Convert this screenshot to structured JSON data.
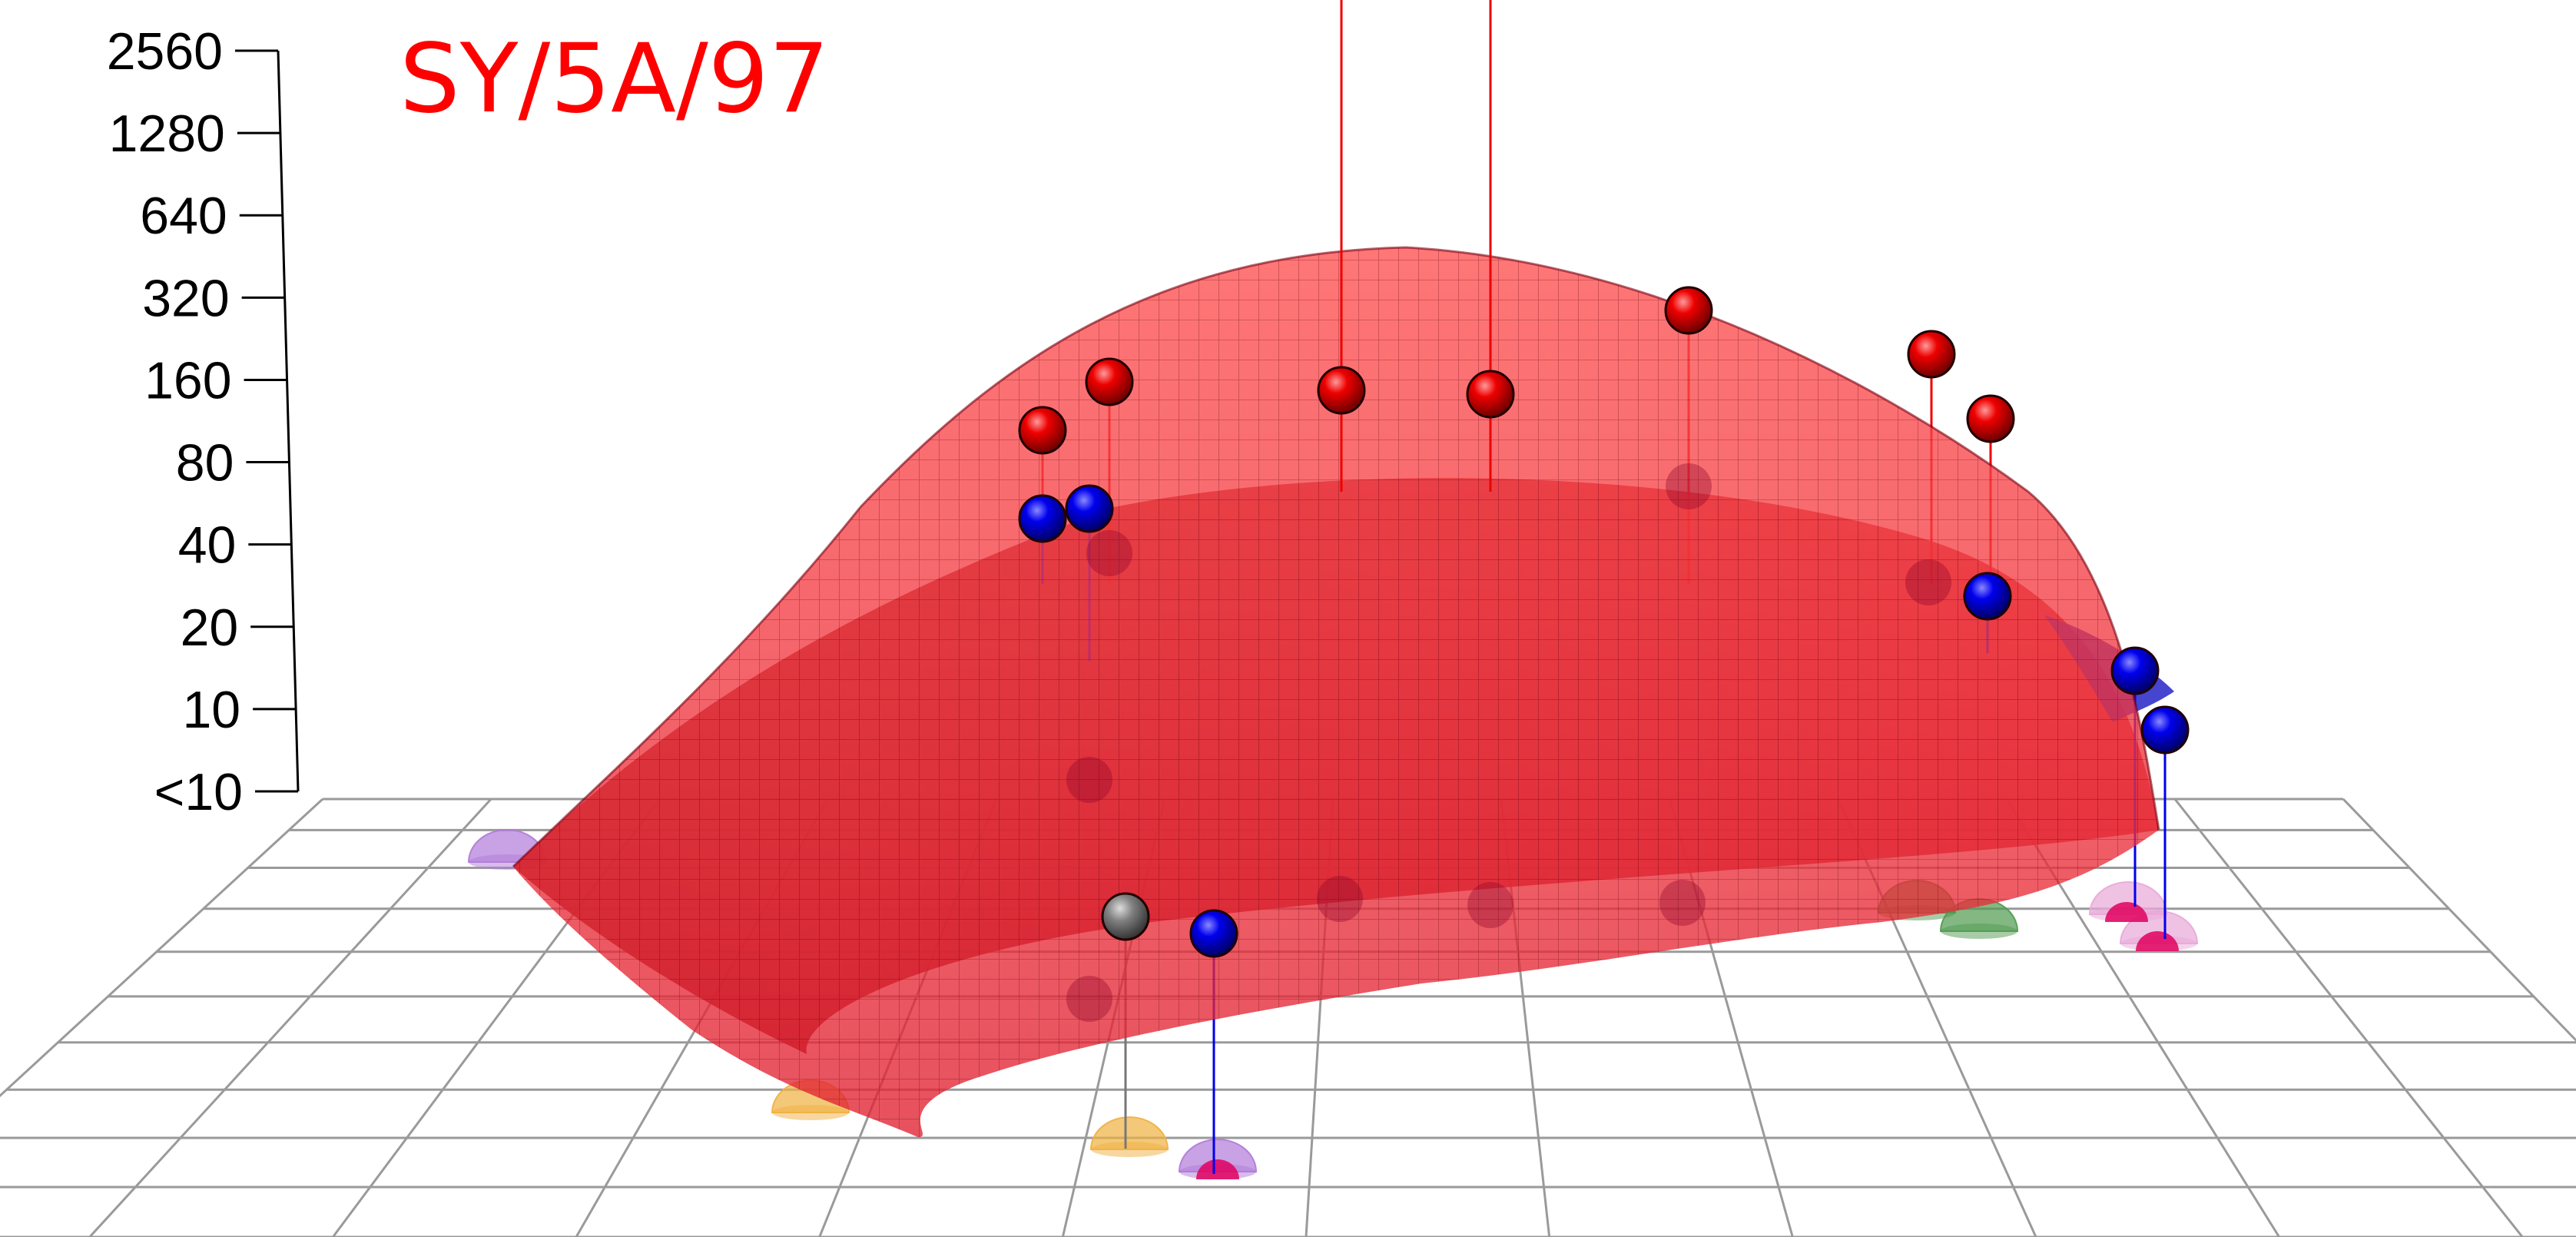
{
  "chart_data": {
    "type": "scatter",
    "title": "SY/5A/97",
    "title_color": "#ff0000",
    "z_axis": {
      "scale": "log2",
      "tick_labels": [
        "<10",
        "10",
        "20",
        "40",
        "80",
        "160",
        "320",
        "640",
        "1280",
        "2560"
      ]
    },
    "grid": true,
    "colors": {
      "surface_light": "#ff4d4d",
      "surface_dark": "#a8101e",
      "surface_blue": "#2222cc",
      "red_point": "#ee0000",
      "blue_point": "#0000ee",
      "gray_point": "#777777",
      "shadow_purple": "#b07ad8",
      "shadow_orange": "#f0b040",
      "shadow_green": "#4f9a4f",
      "shadow_pink": "#e8a8d8",
      "shadow_magenta": "#e0005e"
    },
    "red_points": [
      {
        "id": "r1",
        "titer": 80
      },
      {
        "id": "r2",
        "titer": 160
      },
      {
        "id": "r3",
        "titer": 160
      },
      {
        "id": "r4",
        "titer": 160
      },
      {
        "id": "r5",
        "titer": 320
      },
      {
        "id": "r6",
        "titer": 160
      },
      {
        "id": "r7",
        "titer": 80
      }
    ],
    "blue_points": [
      {
        "id": "b1",
        "titer": 40
      },
      {
        "id": "b2",
        "titer": 40
      },
      {
        "id": "b3",
        "titer": 20
      },
      {
        "id": "b4",
        "titer": 10
      },
      {
        "id": "b5",
        "titer": 10
      },
      {
        "id": "b6",
        "titer": "<10"
      }
    ],
    "gray_points": [
      {
        "id": "g1",
        "titer": "<10"
      }
    ]
  }
}
